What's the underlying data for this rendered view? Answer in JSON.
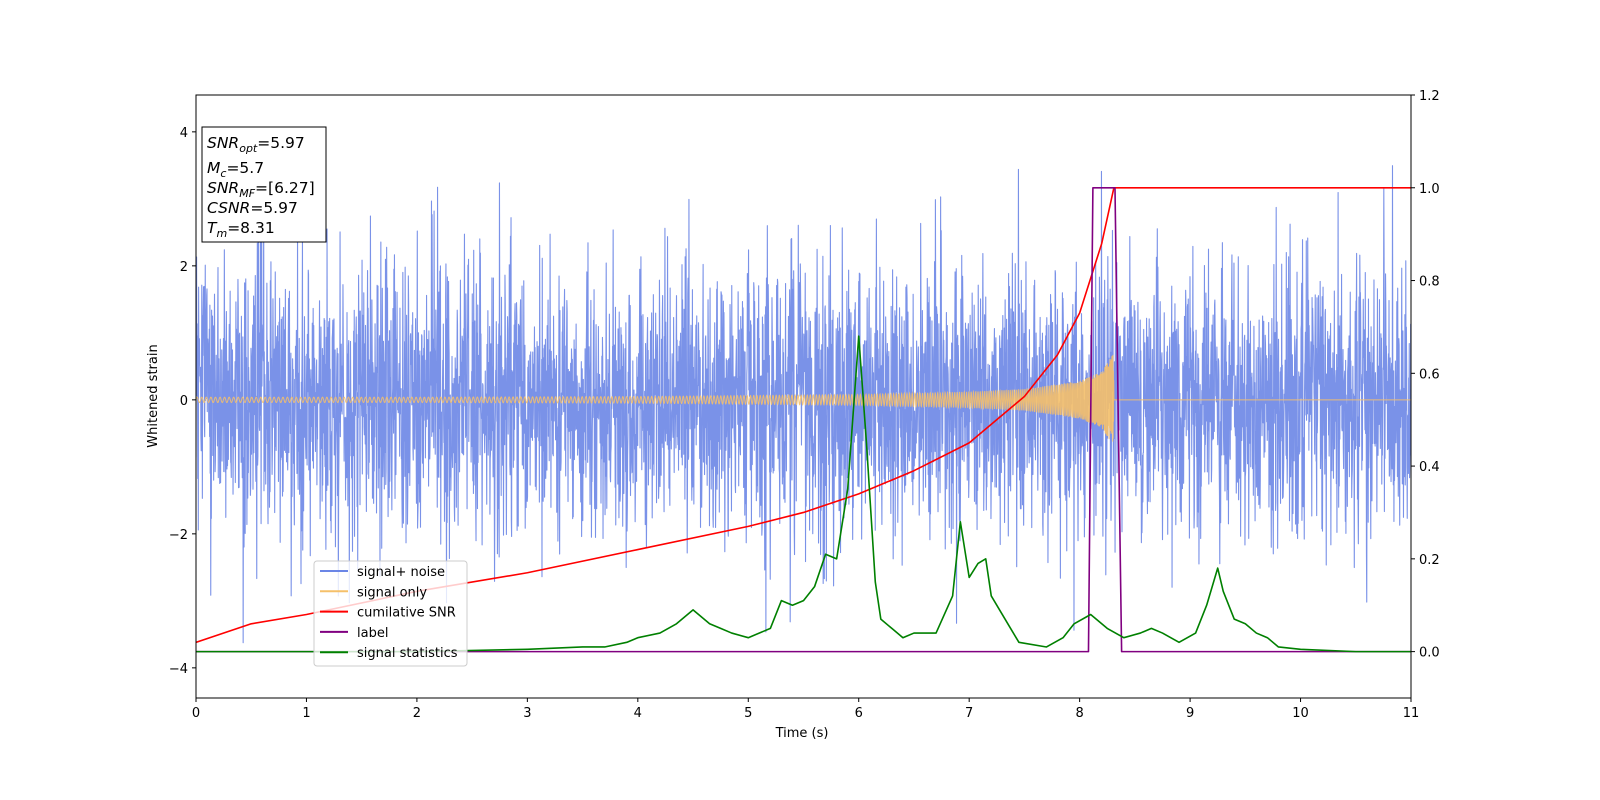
{
  "chart_data": {
    "type": "line",
    "title": "",
    "xlabel": "Time (s)",
    "ylabel": "Whitened strain",
    "xlim": [
      0,
      11
    ],
    "ylim": [
      -4.45,
      4.55
    ],
    "y2lim": [
      -0.1,
      1.2
    ],
    "x_ticks": [
      "0",
      "1",
      "2",
      "3",
      "4",
      "5",
      "6",
      "7",
      "8",
      "9",
      "10",
      "11"
    ],
    "y_ticks": [
      "4",
      "2",
      "0",
      "−2",
      "−4"
    ],
    "y_tick_values": [
      4,
      2,
      0,
      -2,
      -4
    ],
    "y2_ticks": [
      "1.2",
      "1.0",
      "0.8",
      "0.6",
      "0.4",
      "0.2",
      "0.0"
    ],
    "y2_tick_values": [
      1.2,
      1.0,
      0.8,
      0.6,
      0.4,
      0.2,
      0.0
    ],
    "grid": false,
    "legend_position": "lower-left",
    "series": [
      {
        "name": "signal+ noise",
        "color": "#6b86e6",
        "axis": "left",
        "kind": "noise",
        "noise_sigma": 1.0,
        "observed_range": [
          -4.1,
          4.2
        ]
      },
      {
        "name": "signal only",
        "color": "#f5c06a",
        "axis": "left",
        "kind": "chirp",
        "chirp_end": 8.31,
        "amplitude_envelope": {
          "x": [
            0,
            2,
            4,
            6,
            7,
            7.5,
            8,
            8.2,
            8.31
          ],
          "y": [
            0.04,
            0.04,
            0.05,
            0.08,
            0.12,
            0.16,
            0.28,
            0.42,
            0.7
          ]
        }
      },
      {
        "name": "cumilative SNR",
        "color": "#ff0000",
        "axis": "right",
        "x": [
          0,
          0.5,
          1,
          2,
          3,
          4,
          5,
          5.5,
          6,
          6.5,
          7,
          7.5,
          7.8,
          8.0,
          8.2,
          8.31,
          11
        ],
        "y": [
          0.02,
          0.06,
          0.08,
          0.13,
          0.17,
          0.22,
          0.27,
          0.3,
          0.34,
          0.39,
          0.45,
          0.55,
          0.64,
          0.73,
          0.88,
          1.0,
          1.0
        ]
      },
      {
        "name": "label",
        "color": "#800080",
        "axis": "right",
        "x": [
          0,
          8.08,
          8.12,
          8.32,
          8.38,
          11
        ],
        "y": [
          0,
          0,
          1.0,
          1.0,
          0,
          0
        ]
      },
      {
        "name": "signal statistics",
        "color": "#008000",
        "axis": "right",
        "x": [
          0,
          1,
          2,
          3,
          3.5,
          3.7,
          3.9,
          4.0,
          4.2,
          4.35,
          4.5,
          4.65,
          4.75,
          4.85,
          5.0,
          5.2,
          5.3,
          5.4,
          5.5,
          5.6,
          5.7,
          5.8,
          5.9,
          6.0,
          6.07,
          6.15,
          6.2,
          6.3,
          6.4,
          6.5,
          6.7,
          6.85,
          6.92,
          7.0,
          7.08,
          7.15,
          7.2,
          7.35,
          7.45,
          7.7,
          7.85,
          7.95,
          8.1,
          8.25,
          8.4,
          8.55,
          8.65,
          8.75,
          8.9,
          9.05,
          9.15,
          9.25,
          9.3,
          9.4,
          9.5,
          9.6,
          9.7,
          9.8,
          10.0,
          10.5,
          11
        ],
        "y": [
          0.0,
          0.0,
          0.0,
          0.005,
          0.01,
          0.01,
          0.02,
          0.03,
          0.04,
          0.06,
          0.09,
          0.06,
          0.05,
          0.04,
          0.03,
          0.05,
          0.11,
          0.1,
          0.11,
          0.14,
          0.21,
          0.2,
          0.35,
          0.68,
          0.45,
          0.15,
          0.07,
          0.05,
          0.03,
          0.04,
          0.04,
          0.12,
          0.28,
          0.16,
          0.19,
          0.2,
          0.12,
          0.06,
          0.02,
          0.01,
          0.03,
          0.06,
          0.08,
          0.05,
          0.03,
          0.04,
          0.05,
          0.04,
          0.02,
          0.04,
          0.1,
          0.18,
          0.13,
          0.07,
          0.06,
          0.04,
          0.03,
          0.01,
          0.005,
          0.0,
          0.0
        ]
      }
    ]
  },
  "info_box": {
    "snr_opt_main": "SNR",
    "snr_opt_sub": "opt",
    "snr_opt_val": "=5.97",
    "mc_main": "M",
    "mc_sub": "c",
    "mc_val": "=5.7",
    "snr_mf_main": "SNR",
    "snr_mf_sub": "MF",
    "snr_mf_val": "=[6.27]",
    "csnr_main": "CSNR",
    "csnr_val": "=5.97",
    "tm_main": "T",
    "tm_sub": "m",
    "tm_val": "=8.31"
  }
}
